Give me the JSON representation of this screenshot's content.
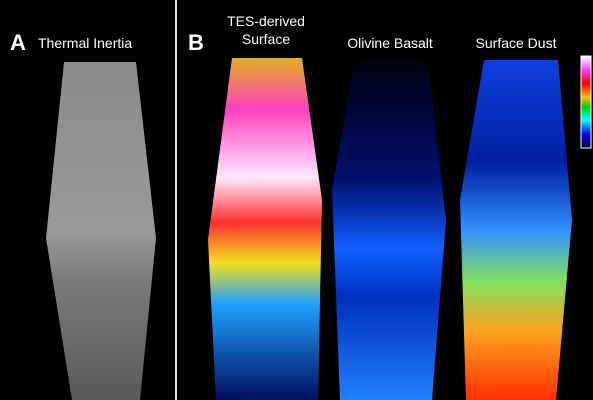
{
  "panel_a": {
    "letter": "A",
    "label": "Thermal Inertia"
  },
  "panel_b": {
    "letter": "B",
    "maps": [
      {
        "label_lines": [
          "TES-derived",
          "Surface"
        ]
      },
      {
        "label_lines": [
          "Olivine Basalt"
        ]
      },
      {
        "label_lines": [
          "Surface Dust"
        ]
      }
    ]
  }
}
